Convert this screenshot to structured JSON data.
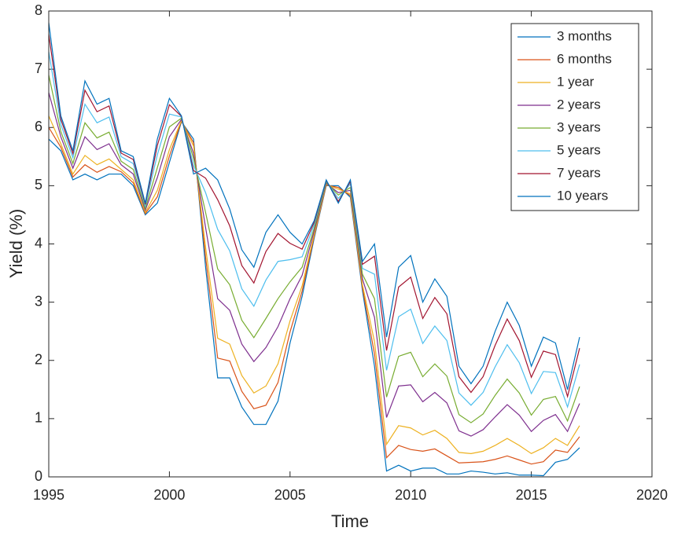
{
  "chart_data": {
    "type": "line",
    "x_label": "Time",
    "y_label": "Yield (%)",
    "x": [
      1995,
      1995.5,
      1996,
      1996.5,
      1997,
      1997.5,
      1998,
      1998.5,
      1999,
      1999.5,
      2000,
      2000.5,
      2001,
      2001.5,
      2002,
      2002.5,
      2003,
      2003.5,
      2004,
      2004.5,
      2005,
      2005.5,
      2006,
      2006.5,
      2007,
      2007.5,
      2008,
      2008.5,
      2009,
      2009.5,
      2010,
      2010.5,
      2011,
      2011.5,
      2012,
      2012.5,
      2013,
      2013.5,
      2014,
      2014.5,
      2015,
      2015.5,
      2016,
      2016.5,
      2017
    ],
    "xlim": [
      1995,
      2020
    ],
    "xticks": [
      1995,
      2000,
      2005,
      2010,
      2015,
      2020
    ],
    "ylim": [
      0,
      8
    ],
    "yticks": [
      0,
      1,
      2,
      3,
      4,
      5,
      6,
      7,
      8
    ],
    "legend_position": "northeast",
    "series": [
      {
        "name": "3 months",
        "color": "#0072BD",
        "values": [
          5.8,
          5.6,
          5.1,
          5.2,
          5.1,
          5.2,
          5.2,
          5.0,
          4.5,
          4.7,
          5.4,
          6.1,
          5.8,
          3.6,
          1.7,
          1.7,
          1.2,
          0.9,
          0.9,
          1.3,
          2.3,
          3.1,
          4.1,
          5.0,
          5.0,
          4.8,
          3.2,
          1.9,
          0.1,
          0.2,
          0.1,
          0.15,
          0.15,
          0.05,
          0.05,
          0.1,
          0.08,
          0.05,
          0.07,
          0.03,
          0.03,
          0.02,
          0.25,
          0.3,
          0.5
        ]
      },
      {
        "name": "6 months",
        "color": "#D95319",
        "values": [
          6.0,
          5.66,
          5.15,
          5.36,
          5.23,
          5.33,
          5.24,
          5.05,
          4.52,
          4.81,
          5.51,
          6.11,
          5.74,
          3.77,
          2.04,
          1.99,
          1.47,
          1.17,
          1.23,
          1.62,
          2.49,
          3.19,
          4.13,
          5.01,
          4.97,
          4.83,
          3.25,
          2.11,
          0.33,
          0.54,
          0.47,
          0.44,
          0.48,
          0.36,
          0.24,
          0.25,
          0.26,
          0.3,
          0.36,
          0.29,
          0.22,
          0.26,
          0.46,
          0.42,
          0.69
        ]
      },
      {
        "name": "1 year",
        "color": "#EDB120",
        "values": [
          6.2,
          5.72,
          5.2,
          5.52,
          5.36,
          5.46,
          5.28,
          5.1,
          4.54,
          4.92,
          5.62,
          6.12,
          5.68,
          3.94,
          2.38,
          2.28,
          1.74,
          1.44,
          1.56,
          1.94,
          2.68,
          3.28,
          4.16,
          5.02,
          4.94,
          4.86,
          3.3,
          2.32,
          0.56,
          0.88,
          0.84,
          0.72,
          0.8,
          0.66,
          0.42,
          0.4,
          0.44,
          0.54,
          0.66,
          0.54,
          0.4,
          0.5,
          0.66,
          0.54,
          0.88
        ]
      },
      {
        "name": "2 years",
        "color": "#7E2F8E",
        "values": [
          6.6,
          5.84,
          5.3,
          5.84,
          5.62,
          5.72,
          5.36,
          5.2,
          4.58,
          5.14,
          5.84,
          6.14,
          5.56,
          4.28,
          3.06,
          2.86,
          2.28,
          1.98,
          2.22,
          2.58,
          3.06,
          3.46,
          4.22,
          5.04,
          4.88,
          4.92,
          3.4,
          2.74,
          1.02,
          1.56,
          1.58,
          1.29,
          1.45,
          1.27,
          0.79,
          0.7,
          0.81,
          1.03,
          1.24,
          1.06,
          0.78,
          0.97,
          1.07,
          0.78,
          1.26
        ]
      },
      {
        "name": "3 years",
        "color": "#77AC30",
        "values": [
          6.9,
          5.93,
          5.38,
          6.08,
          5.82,
          5.92,
          5.42,
          5.28,
          4.61,
          5.31,
          6.01,
          6.16,
          5.47,
          4.54,
          3.57,
          3.3,
          2.69,
          2.39,
          2.72,
          3.06,
          3.35,
          3.6,
          4.27,
          5.06,
          4.84,
          4.97,
          3.48,
          3.06,
          1.37,
          2.07,
          2.14,
          1.72,
          1.94,
          1.73,
          1.07,
          0.93,
          1.08,
          1.4,
          1.68,
          1.44,
          1.06,
          1.33,
          1.38,
          0.96,
          1.55
        ]
      },
      {
        "name": "5 years",
        "color": "#4DBEEE",
        "values": [
          7.3,
          6.05,
          5.48,
          6.4,
          6.08,
          6.18,
          5.5,
          5.38,
          4.65,
          5.53,
          6.23,
          6.18,
          5.35,
          4.88,
          4.25,
          3.88,
          3.23,
          2.93,
          3.38,
          3.7,
          3.73,
          3.78,
          4.33,
          5.08,
          4.78,
          5.03,
          3.58,
          3.48,
          1.83,
          2.75,
          2.88,
          2.29,
          2.59,
          2.34,
          1.44,
          1.23,
          1.45,
          1.89,
          2.27,
          1.96,
          1.43,
          1.81,
          1.79,
          1.2,
          1.93
        ]
      },
      {
        "name": "7 years",
        "color": "#A2142F",
        "values": [
          7.6,
          6.14,
          5.55,
          6.64,
          6.27,
          6.37,
          5.56,
          5.45,
          4.68,
          5.69,
          6.39,
          6.19,
          5.26,
          5.13,
          4.76,
          4.31,
          3.63,
          3.33,
          3.87,
          4.18,
          4.01,
          3.91,
          4.37,
          5.09,
          4.73,
          5.07,
          3.65,
          3.79,
          2.17,
          3.26,
          3.43,
          2.72,
          3.08,
          2.8,
          1.72,
          1.45,
          1.72,
          2.26,
          2.71,
          2.34,
          1.71,
          2.16,
          2.1,
          1.38,
          2.21
        ]
      },
      {
        "name": "10 years",
        "color": "#0072BD",
        "values": [
          7.8,
          6.2,
          5.6,
          6.8,
          6.4,
          6.5,
          5.6,
          5.5,
          4.7,
          5.8,
          6.5,
          6.2,
          5.2,
          5.3,
          5.1,
          4.6,
          3.9,
          3.6,
          4.2,
          4.5,
          4.2,
          4.0,
          4.4,
          5.1,
          4.7,
          5.1,
          3.7,
          4.0,
          2.4,
          3.6,
          3.8,
          3.0,
          3.4,
          3.1,
          1.9,
          1.6,
          1.9,
          2.5,
          3.0,
          2.6,
          1.9,
          2.4,
          2.3,
          1.5,
          2.4
        ]
      }
    ]
  }
}
